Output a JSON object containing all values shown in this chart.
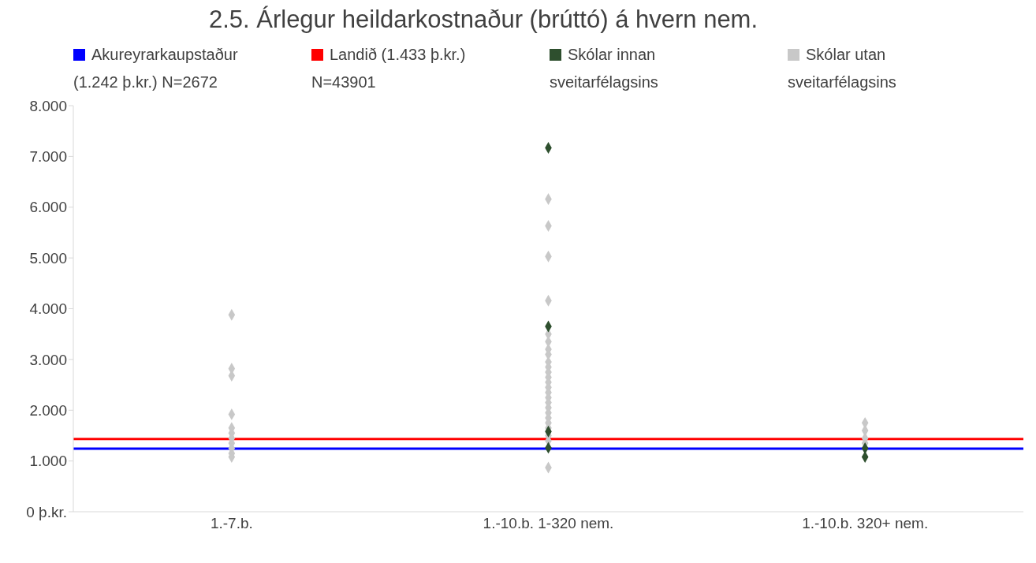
{
  "chart_data": {
    "type": "scatter",
    "title": "2.5. Árlegur heildarkostnaður (brúttó) á hvern nem.",
    "categories": [
      "1.-7.b.",
      "1.-10.b. 1-320 nem.",
      "1.-10.b. 320+ nem."
    ],
    "ylim": [
      0,
      8000
    ],
    "yticks": [
      {
        "value": 0,
        "label": "0 þ.kr."
      },
      {
        "value": 1000,
        "label": "1.000"
      },
      {
        "value": 2000,
        "label": "2.000"
      },
      {
        "value": 3000,
        "label": "3.000"
      },
      {
        "value": 4000,
        "label": "4.000"
      },
      {
        "value": 5000,
        "label": "5.000"
      },
      {
        "value": 6000,
        "label": "6.000"
      },
      {
        "value": 7000,
        "label": "7.000"
      },
      {
        "value": 8000,
        "label": "8.000"
      }
    ],
    "ref_lines": [
      {
        "axis": "y",
        "value": 1242,
        "label": "Akureyrarkaupstaður (1.242 þ.kr.) N=2672",
        "color": "#0000ff"
      },
      {
        "axis": "y",
        "value": 1433,
        "label": "Landið (1.433 þ.kr.) N=43901",
        "color": "#ff0000"
      }
    ],
    "series": [
      {
        "name": "Skólar innan sveitarfélagsins",
        "color": "#2e4f2e",
        "x": [
          "1.-10.b. 1-320 nem.",
          "1.-10.b. 1-320 nem.",
          "1.-10.b. 1-320 nem.",
          "1.-10.b. 1-320 nem.",
          "1.-10.b. 320+ nem.",
          "1.-10.b. 320+ nem."
        ],
        "values": [
          7170,
          3650,
          1580,
          1260,
          1250,
          1080
        ]
      },
      {
        "name": "Skólar utan sveitarfélagsins",
        "color": "#c8c8c8",
        "x": [
          "1.-7.b.",
          "1.-7.b.",
          "1.-7.b.",
          "1.-7.b.",
          "1.-7.b.",
          "1.-7.b.",
          "1.-7.b.",
          "1.-7.b.",
          "1.-7.b.",
          "1.-7.b.",
          "1.-7.b.",
          "1.-10.b. 1-320 nem.",
          "1.-10.b. 1-320 nem.",
          "1.-10.b. 1-320 nem.",
          "1.-10.b. 1-320 nem.",
          "1.-10.b. 1-320 nem.",
          "1.-10.b. 1-320 nem.",
          "1.-10.b. 1-320 nem.",
          "1.-10.b. 1-320 nem.",
          "1.-10.b. 1-320 nem.",
          "1.-10.b. 1-320 nem.",
          "1.-10.b. 1-320 nem.",
          "1.-10.b. 1-320 nem.",
          "1.-10.b. 1-320 nem.",
          "1.-10.b. 1-320 nem.",
          "1.-10.b. 1-320 nem.",
          "1.-10.b. 1-320 nem.",
          "1.-10.b. 1-320 nem.",
          "1.-10.b. 1-320 nem.",
          "1.-10.b. 1-320 nem.",
          "1.-10.b. 1-320 nem.",
          "1.-10.b. 1-320 nem.",
          "1.-10.b. 1-320 nem.",
          "1.-10.b. 1-320 nem.",
          "1.-10.b. 1-320 nem.",
          "1.-10.b. 1-320 nem.",
          "1.-10.b. 320+ nem.",
          "1.-10.b. 320+ nem.",
          "1.-10.b. 320+ nem.",
          "1.-10.b. 320+ nem."
        ],
        "values": [
          3880,
          2820,
          2680,
          1920,
          1650,
          1550,
          1450,
          1350,
          1250,
          1150,
          1080,
          6160,
          5630,
          5030,
          4160,
          3500,
          3350,
          3200,
          3100,
          2950,
          2850,
          2750,
          2650,
          2550,
          2450,
          2350,
          2250,
          2150,
          2050,
          1950,
          1850,
          1750,
          1650,
          1500,
          1400,
          870,
          1750,
          1600,
          1450,
          1350
        ]
      }
    ],
    "marker": "diamond",
    "grid": false,
    "legend": "top"
  }
}
